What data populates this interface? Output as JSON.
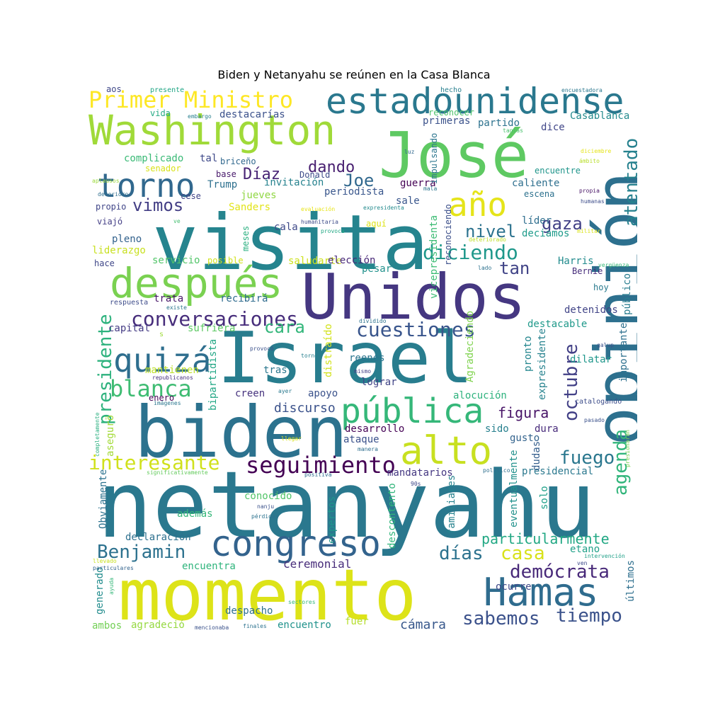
{
  "title": "Biden y Netanyahu se reúnen en la Casa Blanca",
  "words": [
    {
      "text": "netanyahu",
      "color": "#2a788e"
    },
    {
      "text": "momento",
      "color": "#dde318"
    },
    {
      "text": "Israel",
      "color": "#287d8e"
    },
    {
      "text": "visita",
      "color": "#25848e"
    },
    {
      "text": "Unidos",
      "color": "#453781"
    },
    {
      "text": "biden",
      "color": "#2c728e"
    },
    {
      "text": "opinión",
      "color": "#2d708e"
    },
    {
      "text": "José",
      "color": "#5ec962"
    },
    {
      "text": "Washington",
      "color": "#a0da39"
    },
    {
      "text": "estadounidense",
      "color": "#2a788e"
    },
    {
      "text": "después",
      "color": "#7ad151"
    },
    {
      "text": "Hamas",
      "color": "#2f6c8e"
    },
    {
      "text": "congreso",
      "color": "#33638d"
    },
    {
      "text": "alto",
      "color": "#c8e020"
    },
    {
      "text": "pública",
      "color": "#35b779"
    },
    {
      "text": "torno",
      "color": "#31688e"
    },
    {
      "text": "quizá",
      "color": "#2e6e8e"
    },
    {
      "text": "año",
      "color": "#e5e419"
    },
    {
      "text": "Primer Ministro",
      "color": "#fde725"
    },
    {
      "text": "blanca",
      "color": "#3fbc73"
    },
    {
      "text": "seguimiento",
      "color": "#440154"
    },
    {
      "text": "conversaciones",
      "color": "#472d7b"
    },
    {
      "text": "cuestiones",
      "color": "#39558c"
    },
    {
      "text": "diciendo",
      "color": "#1f988b"
    },
    {
      "text": "interesante",
      "color": "#d0e11c"
    },
    {
      "text": "Benjamin",
      "color": "#2c718e"
    },
    {
      "text": "sabemos",
      "color": "#3b518b"
    },
    {
      "text": "tiempo",
      "color": "#3b528b"
    },
    {
      "text": "demócrata",
      "color": "#482979"
    },
    {
      "text": "presidente",
      "color": "#2db27d"
    },
    {
      "text": "octubre",
      "color": "#424086"
    },
    {
      "text": "agenda",
      "color": "#31b57b"
    },
    {
      "text": "atentado",
      "color": "#26818e"
    },
    {
      "text": "fuego",
      "color": "#2a778e"
    },
    {
      "text": "días",
      "color": "#2c728e"
    },
    {
      "text": "casa",
      "color": "#d8e219"
    },
    {
      "text": "cara",
      "color": "#32b67a"
    },
    {
      "text": "dando",
      "color": "#481f70"
    },
    {
      "text": "Díaz",
      "color": "#482475"
    },
    {
      "text": "Joe",
      "color": "#31688e"
    },
    {
      "text": "vimos",
      "color": "#433e85"
    },
    {
      "text": "nivel",
      "color": "#2c728e"
    },
    {
      "text": "gaza",
      "color": "#424186"
    },
    {
      "text": "tan",
      "color": "#414487"
    },
    {
      "text": "particularmente",
      "color": "#22a884"
    },
    {
      "text": "figura",
      "color": "#481467"
    },
    {
      "text": "discurso",
      "color": "#3b528b"
    },
    {
      "text": "cámara",
      "color": "#38588c"
    },
    {
      "text": "ceremonial",
      "color": "#472c7a"
    },
    {
      "text": "encuentra",
      "color": "#2fb47c"
    },
    {
      "text": "agradeció",
      "color": "#95d840"
    },
    {
      "text": "despacho",
      "color": "#2d708e"
    },
    {
      "text": "encuentro",
      "color": "#20928c"
    },
    {
      "text": "fuer",
      "color": "#b5de2b"
    },
    {
      "text": "ambos",
      "color": "#73d056"
    },
    {
      "text": "declaración",
      "color": "#2d708e"
    },
    {
      "text": "además",
      "color": "#35b779"
    },
    {
      "text": "conocido",
      "color": "#52c569"
    },
    {
      "text": "expertos",
      "color": "#1f968b"
    },
    {
      "text": "descontento",
      "color": "#31b57b"
    },
    {
      "text": "familiares",
      "color": "#26828e"
    },
    {
      "text": "eventualmente",
      "color": "#21918c"
    },
    {
      "text": "solo",
      "color": "#1fa088"
    },
    {
      "text": "mandatarios",
      "color": "#453882"
    },
    {
      "text": "presidencial",
      "color": "#2a788e"
    },
    {
      "text": "etano",
      "color": "#1fa088"
    },
    {
      "text": "ocurre",
      "color": "#3e4989"
    },
    {
      "text": "últimos",
      "color": "#2e6f8e"
    },
    {
      "text": "generado",
      "color": "#228c8d"
    },
    {
      "text": "Obviamente",
      "color": "#2c728e"
    },
    {
      "text": "desarrollo",
      "color": "#440154"
    },
    {
      "text": "ataque",
      "color": "#3b518b"
    },
    {
      "text": "sido",
      "color": "#27808e"
    },
    {
      "text": "dura",
      "color": "#472a7a"
    },
    {
      "text": "gusto",
      "color": "#33638d"
    },
    {
      "text": "dudas",
      "color": "#355f8d"
    },
    {
      "text": "apoyo",
      "color": "#3b528b"
    },
    {
      "text": "lograr",
      "color": "#414487"
    },
    {
      "text": "creen",
      "color": "#46327e"
    },
    {
      "text": "enero",
      "color": "#440154"
    },
    {
      "text": "asegurö",
      "color": "#a2da37"
    },
    {
      "text": "mantienen",
      "color": "#bddf26"
    },
    {
      "text": "tras",
      "color": "#2a778e"
    },
    {
      "text": "reenes",
      "color": "#2b758e"
    },
    {
      "text": "alocución",
      "color": "#2db27d"
    },
    {
      "text": "destacable",
      "color": "#1f998a"
    },
    {
      "text": "expresidente",
      "color": "#26828e"
    },
    {
      "text": "importante",
      "color": "#2d708e"
    },
    {
      "text": "público",
      "color": "#287c8e"
    },
    {
      "text": "dilatar",
      "color": "#1f978b"
    },
    {
      "text": "detenidos",
      "color": "#414487"
    },
    {
      "text": "pronto",
      "color": "#24868e"
    },
    {
      "text": "bipartidista",
      "color": "#22a785"
    },
    {
      "text": "distraído",
      "color": "#d2e21b"
    },
    {
      "text": "Agradeciendo",
      "color": "#7fd34e"
    },
    {
      "text": "sufriera",
      "color": "#5cc863"
    },
    {
      "text": "capital",
      "color": "#443b84"
    },
    {
      "text": "respuesta",
      "color": "#3e4c8a"
    },
    {
      "text": "trata",
      "color": "#481769"
    },
    {
      "text": "recibirá",
      "color": "#2f6b8e"
    },
    {
      "text": "pleno",
      "color": "#33628d"
    },
    {
      "text": "liderazgo",
      "color": "#c8e020"
    },
    {
      "text": "hace",
      "color": "#3f4788"
    },
    {
      "text": "servicio",
      "color": "#52c569"
    },
    {
      "text": "posible",
      "color": "#d0e11c"
    },
    {
      "text": "saludarte",
      "color": "#cde11d"
    },
    {
      "text": "elección",
      "color": "#482878"
    },
    {
      "text": "pesar",
      "color": "#21918c"
    },
    {
      "text": "vicepresidenta",
      "color": "#3dbc74"
    },
    {
      "text": "reconociendo",
      "color": "#3c4f8a"
    },
    {
      "text": "Harris",
      "color": "#228b8d"
    },
    {
      "text": "Bernie",
      "color": "#472d7b"
    },
    {
      "text": "hoy",
      "color": "#297a8e"
    },
    {
      "text": "meses",
      "color": "#29af7f"
    },
    {
      "text": "aquí",
      "color": "#dde318"
    },
    {
      "text": "líder",
      "color": "#2e6e8e"
    },
    {
      "text": "deciamos",
      "color": "#1e9b8a"
    },
    {
      "text": "sale",
      "color": "#39568c"
    },
    {
      "text": "cala",
      "color": "#3e4989"
    },
    {
      "text": "periodista",
      "color": "#39568c"
    },
    {
      "text": "jueves",
      "color": "#90d743"
    },
    {
      "text": "Sanders",
      "color": "#e2e418"
    },
    {
      "text": "invitación",
      "color": "#26828e"
    },
    {
      "text": "Trump",
      "color": "#2d708e"
    },
    {
      "text": "base",
      "color": "#481a6c"
    },
    {
      "text": "Donald",
      "color": "#3e4c8a"
    },
    {
      "text": "cese",
      "color": "#414487"
    },
    {
      "text": "viajó",
      "color": "#433e85"
    },
    {
      "text": "propio",
      "color": "#404588"
    },
    {
      "text": "complicado",
      "color": "#3aba76"
    },
    {
      "text": "tal",
      "color": "#3e4989"
    },
    {
      "text": "senador",
      "color": "#d8e219"
    },
    {
      "text": "briceño",
      "color": "#31688e"
    },
    {
      "text": "guerra",
      "color": "#440154"
    },
    {
      "text": "caliente",
      "color": "#2e6f8e"
    },
    {
      "text": "escena",
      "color": "#2c718e"
    },
    {
      "text": "encuentre",
      "color": "#1f958b"
    },
    {
      "text": "impulsando",
      "color": "#2b758e"
    },
    {
      "text": "primeras",
      "color": "#3b528b"
    },
    {
      "text": "partido",
      "color": "#2c728e"
    },
    {
      "text": "dice",
      "color": "#404688"
    },
    {
      "text": "Casablanca",
      "color": "#238a8d"
    },
    {
      "text": "reconocer",
      "color": "#4ec36b"
    },
    {
      "text": "destacarías",
      "color": "#3b518b"
    },
    {
      "text": "vida",
      "color": "#24aa83"
    },
    {
      "text": "aos",
      "color": "#3f4788"
    },
    {
      "text": "presente",
      "color": "#21a685"
    },
    {
      "text": "hecho",
      "color": "#277f8e"
    },
    {
      "text": "encuestadora",
      "color": "#2a778e"
    },
    {
      "text": "tantas",
      "color": "#4ac16d"
    },
    {
      "text": "embargo",
      "color": "#277f8e"
    },
    {
      "text": "aplausos",
      "color": "#9bd93c"
    },
    {
      "text": "luz",
      "color": "#31688e"
    },
    {
      "text": "diciembre",
      "color": "#e5e419"
    },
    {
      "text": "ámbito",
      "color": "#b8de29"
    },
    {
      "text": "humanas",
      "color": "#3d4d8a"
    },
    {
      "text": "deterioro",
      "color": "#2e6e8e"
    },
    {
      "text": "mala",
      "color": "#2b758e"
    },
    {
      "text": "propia",
      "color": "#471365"
    },
    {
      "text": "evaluación",
      "color": "#e7e419"
    },
    {
      "text": "expresidenta",
      "color": "#238a8d"
    },
    {
      "text": "ve",
      "color": "#44bf70"
    },
    {
      "text": "humanitaria",
      "color": "#3e4c8a"
    },
    {
      "text": "provoca",
      "color": "#22a884"
    },
    {
      "text": "deteriorado",
      "color": "#c0df25"
    },
    {
      "text": "militar",
      "color": "#dae319"
    },
    {
      "text": "lado",
      "color": "#2c718e"
    },
    {
      "text": "vergüenza",
      "color": "#37b878"
    },
    {
      "text": "existe",
      "color": "#2b758e"
    },
    {
      "text": "dividido",
      "color": "#2c728e"
    },
    {
      "text": "provocó",
      "color": "#3b518b"
    },
    {
      "text": "tornó",
      "color": "#277f8e"
    },
    {
      "text": "galup",
      "color": "#3b528b"
    },
    {
      "text": "republicanos",
      "color": "#46307e"
    },
    {
      "text": "mismo",
      "color": "#433e85"
    },
    {
      "text": "ayer",
      "color": "#29798e"
    },
    {
      "text": "imágenes",
      "color": "#2a778e"
    },
    {
      "text": "catalogando",
      "color": "#3d4d8a"
    },
    {
      "text": "pasado",
      "color": "#3b528b"
    },
    {
      "text": "presionarán",
      "color": "#7ad151"
    },
    {
      "text": "completamente",
      "color": "#29af7f"
    },
    {
      "text": "llegar",
      "color": "#d8e219"
    },
    {
      "text": "manera",
      "color": "#2e6e8e"
    },
    {
      "text": "significativamente",
      "color": "#65cb5e"
    },
    {
      "text": "positiva",
      "color": "#2e6e8e"
    },
    {
      "text": "político",
      "color": "#2e6f8e"
    },
    {
      "text": "90s",
      "color": "#3e4989"
    },
    {
      "text": "nanju",
      "color": "#3b528b"
    },
    {
      "text": "pérdidas",
      "color": "#2c728e"
    },
    {
      "text": "intervención",
      "color": "#1fa088"
    },
    {
      "text": "ven",
      "color": "#3e4989"
    },
    {
      "text": "llevado",
      "color": "#c8e020"
    },
    {
      "text": "particulares",
      "color": "#33638d"
    },
    {
      "text": "ayuda",
      "color": "#35b779"
    },
    {
      "text": "sectores",
      "color": "#35b779"
    },
    {
      "text": "finales",
      "color": "#2c728e"
    },
    {
      "text": "mencionaba",
      "color": "#3b528b"
    },
    {
      "text": "s",
      "color": "#9fda3a"
    }
  ]
}
